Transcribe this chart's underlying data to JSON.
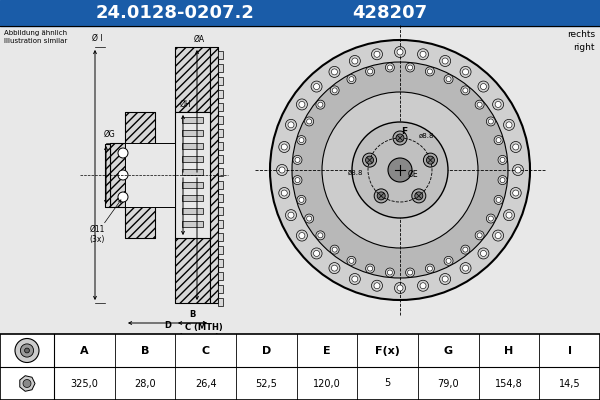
{
  "title1": "24.0128-0207.2",
  "title2": "428207",
  "header_bg": "#1a5ca8",
  "header_text_color": "#ffffff",
  "bg_color": "#ffffff",
  "diagram_bg": "#e8e8e8",
  "subtitle_left": "Abbildung ähnlich\nIllustration similar",
  "subtitle_right": "rechts\nright",
  "col_headers": [
    "A",
    "B",
    "C",
    "D",
    "E",
    "F(x)",
    "G",
    "H",
    "I"
  ],
  "col_values": [
    "325,0",
    "28,0",
    "26,4",
    "52,5",
    "120,0",
    "5",
    "79,0",
    "154,8",
    "14,5"
  ],
  "bottom_label": "C (MTH)",
  "hatch_color": "#555555"
}
